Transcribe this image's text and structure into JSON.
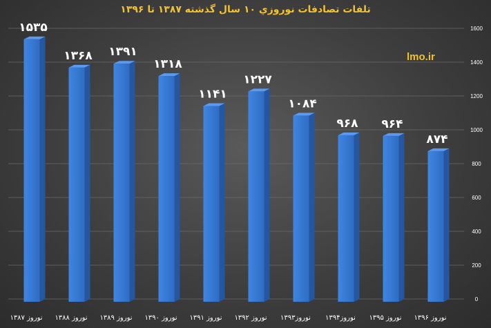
{
  "title": "تلفات تصادفات نوروزي ۱۰ سال گذشته ۱۳۸۷ تا ۱۳۹۶",
  "watermark": "lmo.ir",
  "chart_data": {
    "type": "bar",
    "title": "تلفات تصادفات نوروزي ۱۰ سال گذشته ۱۳۸۷ تا ۱۳۹۶",
    "categories": [
      "نوروز ۱۳۸۷",
      "نوروز ۱۳۸۸",
      "نوروز ۱۳۸۹",
      "نوروز ۱۳۹۰",
      "نوروز ۱۳۹۱",
      "نوروز ۱۳۹۲",
      "نوروز۱۳۹۳",
      "نوروز۱۳۹۴",
      "نوروز ۱۳۹۵",
      "نوروز ۱۳۹۶"
    ],
    "values": [
      1535,
      1368,
      1391,
      1318,
      1141,
      1227,
      1084,
      968,
      964,
      874
    ],
    "value_labels": [
      "۱۵۳۵",
      "۱۳۶۸",
      "۱۳۹۱",
      "۱۳۱۸",
      "۱۱۴۱",
      "۱۲۲۷",
      "۱۰۸۴",
      "۹۶۸",
      "۹۶۴",
      "۸۷۴"
    ],
    "ytick_labels": [
      "0",
      "200",
      "400",
      "600",
      "800",
      "1000",
      "1200",
      "1400",
      "1600"
    ],
    "ylim": [
      0,
      1600
    ],
    "y_axis_side": "right",
    "grid": true,
    "bar_color": "#3a7bd5"
  }
}
